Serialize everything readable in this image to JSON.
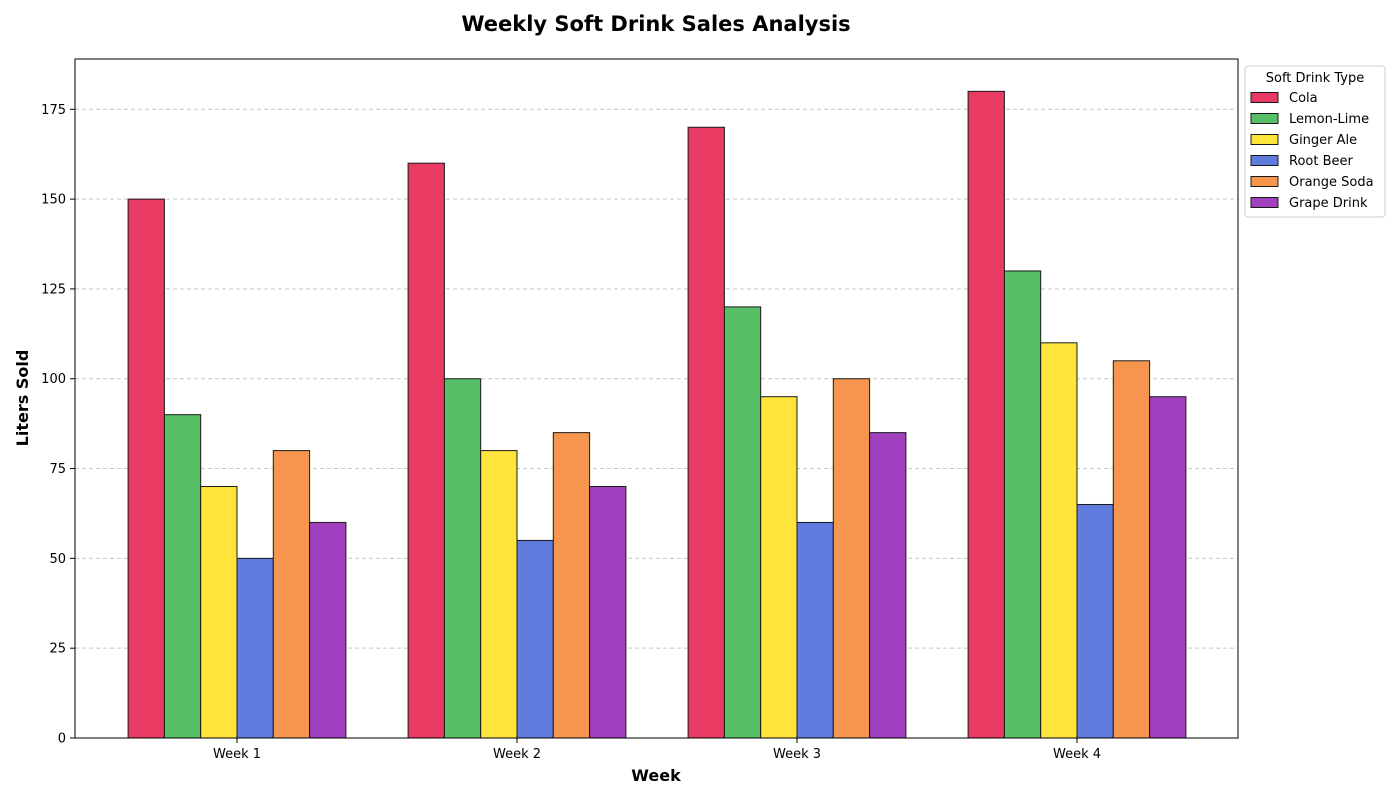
{
  "chart_data": {
    "type": "bar",
    "title": "Weekly Soft Drink Sales Analysis",
    "xlabel": "Week",
    "ylabel": "Liters Sold",
    "categories": [
      "Week 1",
      "Week 2",
      "Week 3",
      "Week 4"
    ],
    "ylim": [
      0,
      189
    ],
    "yticks": [
      0,
      25,
      50,
      75,
      100,
      125,
      150,
      175
    ],
    "grid": true,
    "legend": {
      "title": "Soft Drink Type",
      "placement": "outside-top-right"
    },
    "series": [
      {
        "name": "Cola",
        "color": "#E83A63",
        "values": [
          150,
          160,
          170,
          180
        ]
      },
      {
        "name": "Lemon-Lime",
        "color": "#57BF65",
        "values": [
          90,
          100,
          120,
          130
        ]
      },
      {
        "name": "Ginger Ale",
        "color": "#FFE53B",
        "values": [
          70,
          80,
          95,
          110
        ]
      },
      {
        "name": "Root Beer",
        "color": "#5E7BDD",
        "values": [
          50,
          55,
          60,
          65
        ]
      },
      {
        "name": "Orange Soda",
        "color": "#F6964E",
        "values": [
          80,
          85,
          100,
          105
        ]
      },
      {
        "name": "Grape Drink",
        "color": "#A040BF",
        "values": [
          60,
          70,
          85,
          95
        ]
      }
    ]
  }
}
